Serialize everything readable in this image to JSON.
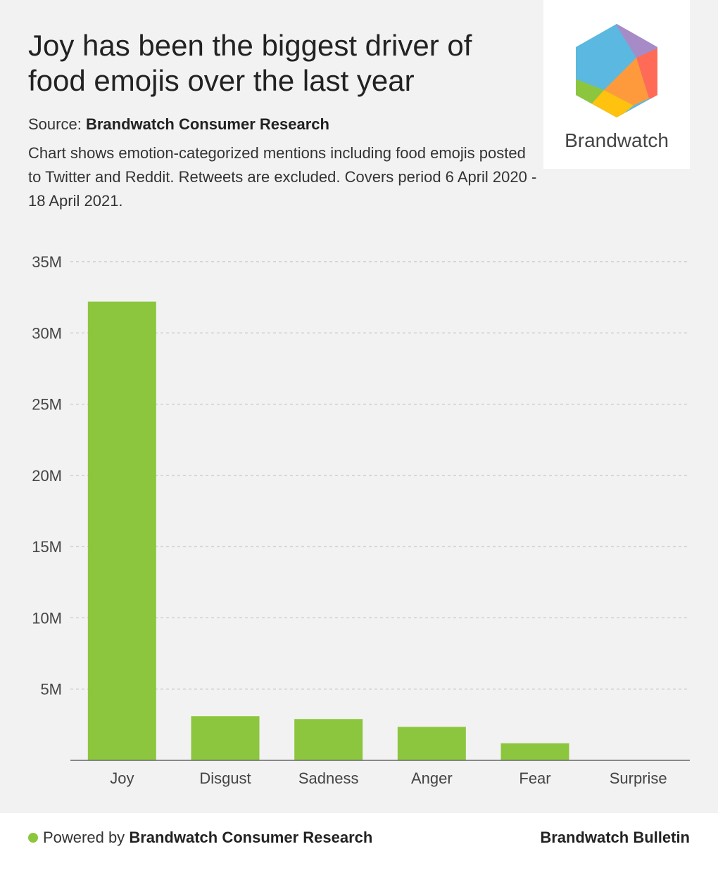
{
  "header": {
    "title": "Joy has been the biggest driver of food emojis over the last year",
    "source_label": "Source:",
    "source_name": "Brandwatch Consumer Research",
    "description": "Chart shows emotion-categorized mentions including food emojis posted to Twitter and Reddit. Retweets are excluded. Covers period 6 April 2020 - 18 April 2021."
  },
  "logo": {
    "wordmark": "Brandwatch"
  },
  "footer": {
    "powered_label": "Powered by",
    "powered_name": "Brandwatch Consumer Research",
    "brand": "Brandwatch Bulletin"
  },
  "colors": {
    "bar": "#8cc63f",
    "dot": "#8cc63f"
  },
  "chart_data": {
    "type": "bar",
    "title": "Joy has been the biggest driver of food emojis over the last year",
    "xlabel": "",
    "ylabel": "",
    "categories": [
      "Joy",
      "Disgust",
      "Sadness",
      "Anger",
      "Fear",
      "Surprise"
    ],
    "values": [
      32200000,
      3100000,
      2900000,
      2350000,
      1200000,
      0
    ],
    "ylim": [
      0,
      35000000
    ],
    "yticks": [
      5000000,
      10000000,
      15000000,
      20000000,
      25000000,
      30000000,
      35000000
    ],
    "ytick_labels": [
      "5M",
      "10M",
      "15M",
      "20M",
      "25M",
      "30M",
      "35M"
    ],
    "grid": true
  }
}
